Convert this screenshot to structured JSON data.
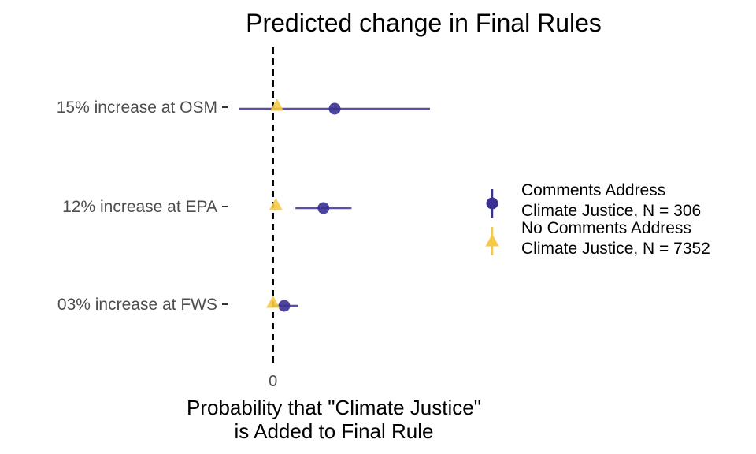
{
  "chart_data": {
    "type": "scatter",
    "title": "Predicted change in Final Rules",
    "xlabel": [
      "Probability that \"Climate Justice\"",
      "is Added to Final Rule"
    ],
    "ylabel": "",
    "categories": [
      "15% increase at OSM",
      "12% increase at EPA",
      "03% increase at FWS"
    ],
    "x_ticks": [
      {
        "value": 0,
        "label": "0"
      }
    ],
    "xlim": [
      -0.06,
      0.28
    ],
    "reference_line": {
      "x": 0,
      "style": "dashed"
    },
    "series": [
      {
        "name": [
          "Comments Address",
          "Climate Justice, N = 306"
        ],
        "marker": "circle",
        "color": "#3b3193",
        "points": [
          {
            "category": "15% increase at OSM",
            "estimate": 0.11,
            "low": -0.06,
            "high": 0.28
          },
          {
            "category": "12% increase at EPA",
            "estimate": 0.09,
            "low": 0.04,
            "high": 0.14
          },
          {
            "category": "03% increase at FWS",
            "estimate": 0.02,
            "low": 0.0,
            "high": 0.045
          }
        ]
      },
      {
        "name": [
          "No Comments Address",
          "Climate Justice, N = 7352"
        ],
        "marker": "triangle",
        "color": "#f6c944",
        "points": [
          {
            "category": "15% increase at OSM",
            "estimate": 0.007
          },
          {
            "category": "12% increase at EPA",
            "estimate": 0.005
          },
          {
            "category": "03% increase at FWS",
            "estimate": 0.0
          }
        ]
      }
    ],
    "grid": false,
    "legend_position": "right"
  }
}
